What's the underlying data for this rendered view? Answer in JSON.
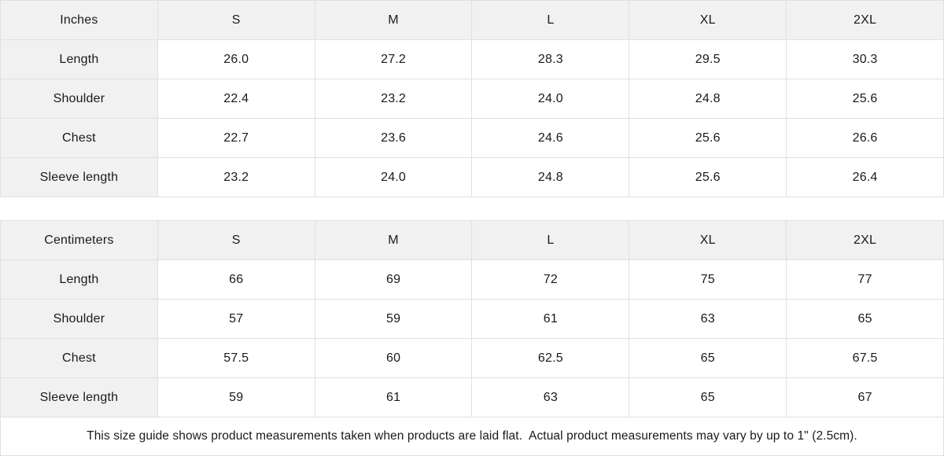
{
  "theme": {
    "header_bg": "#f1f1f1",
    "cell_bg": "#ffffff",
    "border_color": "#e0e0e0",
    "text_color": "#1a1a1a"
  },
  "size_guide": {
    "tables": [
      {
        "unit_label": "Inches",
        "sizes": [
          "S",
          "M",
          "L",
          "XL",
          "2XL"
        ],
        "rows": [
          {
            "label": "Length",
            "values": [
              "26.0",
              "27.2",
              "28.3",
              "29.5",
              "30.3"
            ]
          },
          {
            "label": "Shoulder",
            "values": [
              "22.4",
              "23.2",
              "24.0",
              "24.8",
              "25.6"
            ]
          },
          {
            "label": "Chest",
            "values": [
              "22.7",
              "23.6",
              "24.6",
              "25.6",
              "26.6"
            ]
          },
          {
            "label": "Sleeve length",
            "values": [
              "23.2",
              "24.0",
              "24.8",
              "25.6",
              "26.4"
            ]
          }
        ]
      },
      {
        "unit_label": "Centimeters",
        "sizes": [
          "S",
          "M",
          "L",
          "XL",
          "2XL"
        ],
        "rows": [
          {
            "label": "Length",
            "values": [
              "66",
              "69",
              "72",
              "75",
              "77"
            ]
          },
          {
            "label": "Shoulder",
            "values": [
              "57",
              "59",
              "61",
              "63",
              "65"
            ]
          },
          {
            "label": "Chest",
            "values": [
              "57.5",
              "60",
              "62.5",
              "65",
              "67.5"
            ]
          },
          {
            "label": "Sleeve length",
            "values": [
              "59",
              "61",
              "63",
              "65",
              "67"
            ]
          }
        ]
      }
    ],
    "footnote": "This size guide shows product measurements taken when products are laid flat.  Actual product measurements may vary by up to 1\" (2.5cm)."
  }
}
